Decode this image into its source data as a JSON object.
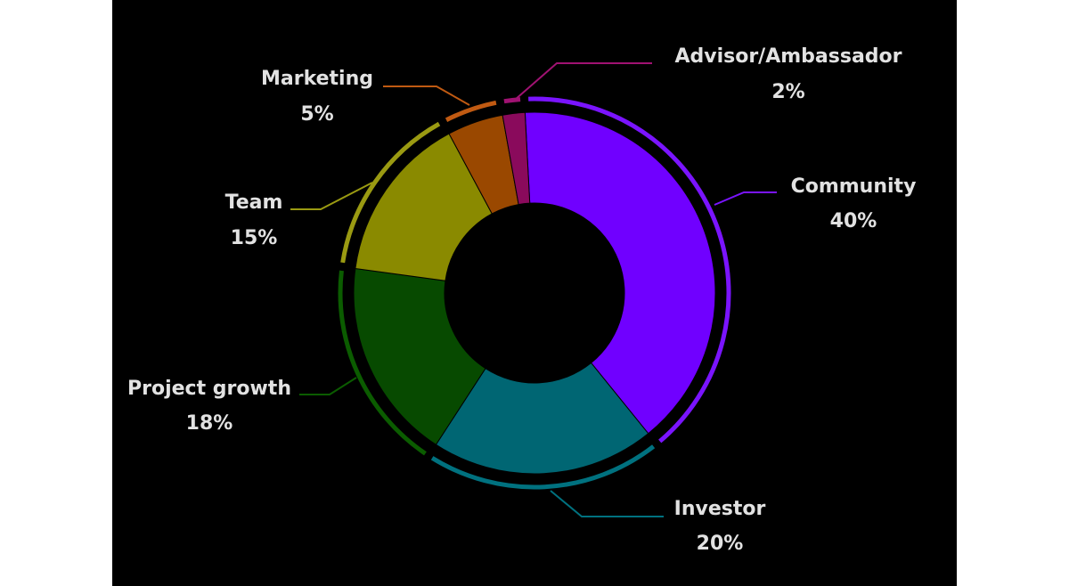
{
  "chart_data": {
    "type": "donut",
    "categories": [
      "Community",
      "Investor",
      "Project growth",
      "Team",
      "Marketing",
      "Advisor/Ambassador"
    ],
    "values": [
      40,
      20,
      18,
      15,
      5,
      2
    ],
    "value_labels": [
      "40%",
      "20%",
      "18%",
      "15%",
      "5%",
      "2%"
    ],
    "colors": [
      "#7000ff",
      "#006673",
      "#074a00",
      "#8a8a00",
      "#9a4800",
      "#8a0a5c"
    ],
    "ring_colors": [
      "#7a14ff",
      "#00717f",
      "#0b5c00",
      "#9a9a12",
      "#c05a12",
      "#a01272"
    ]
  }
}
